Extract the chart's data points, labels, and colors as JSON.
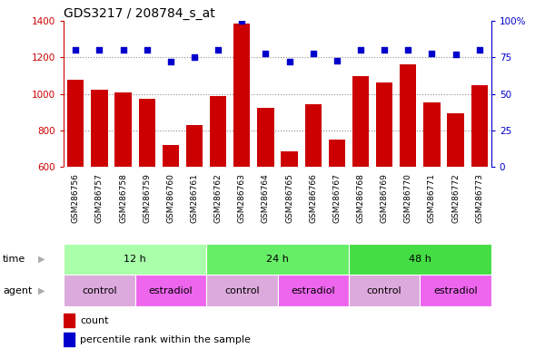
{
  "title": "GDS3217 / 208784_s_at",
  "samples": [
    "GSM286756",
    "GSM286757",
    "GSM286758",
    "GSM286759",
    "GSM286760",
    "GSM286761",
    "GSM286762",
    "GSM286763",
    "GSM286764",
    "GSM286765",
    "GSM286766",
    "GSM286767",
    "GSM286768",
    "GSM286769",
    "GSM286770",
    "GSM286771",
    "GSM286772",
    "GSM286773"
  ],
  "counts": [
    1080,
    1025,
    1010,
    975,
    720,
    830,
    990,
    1385,
    925,
    685,
    945,
    750,
    1100,
    1065,
    1160,
    955,
    895,
    1050
  ],
  "percentile_ranks": [
    80,
    80,
    80,
    80,
    72,
    75,
    80,
    100,
    78,
    72,
    78,
    73,
    80,
    80,
    80,
    78,
    77,
    80
  ],
  "ylim_left": [
    600,
    1400
  ],
  "ylim_right": [
    0,
    100
  ],
  "yticks_left": [
    600,
    800,
    1000,
    1200,
    1400
  ],
  "yticks_right": [
    0,
    25,
    50,
    75,
    100
  ],
  "bar_color": "#CC0000",
  "dot_color": "#0000CC",
  "time_groups": [
    {
      "label": "12 h",
      "start": 0,
      "end": 6,
      "color": "#AAFFAA"
    },
    {
      "label": "24 h",
      "start": 6,
      "end": 12,
      "color": "#66EE66"
    },
    {
      "label": "48 h",
      "start": 12,
      "end": 18,
      "color": "#44DD44"
    }
  ],
  "agent_groups": [
    {
      "label": "control",
      "start": 0,
      "end": 3,
      "color": "#DDAADD"
    },
    {
      "label": "estradiol",
      "start": 3,
      "end": 6,
      "color": "#EE66EE"
    },
    {
      "label": "control",
      "start": 6,
      "end": 9,
      "color": "#DDAADD"
    },
    {
      "label": "estradiol",
      "start": 9,
      "end": 12,
      "color": "#EE66EE"
    },
    {
      "label": "control",
      "start": 12,
      "end": 15,
      "color": "#DDAADD"
    },
    {
      "label": "estradiol",
      "start": 15,
      "end": 18,
      "color": "#EE66EE"
    }
  ],
  "time_label": "time",
  "agent_label": "agent",
  "legend_count": "count",
  "legend_pct": "percentile rank within the sample",
  "grid_color": "#888888",
  "bg_color": "#FFFFFF",
  "tick_label_color_left": "#CC0000",
  "tick_label_color_right": "#0000CC",
  "title_fontsize": 10,
  "bar_width": 0.7,
  "xtick_bg": "#DDDDDD"
}
